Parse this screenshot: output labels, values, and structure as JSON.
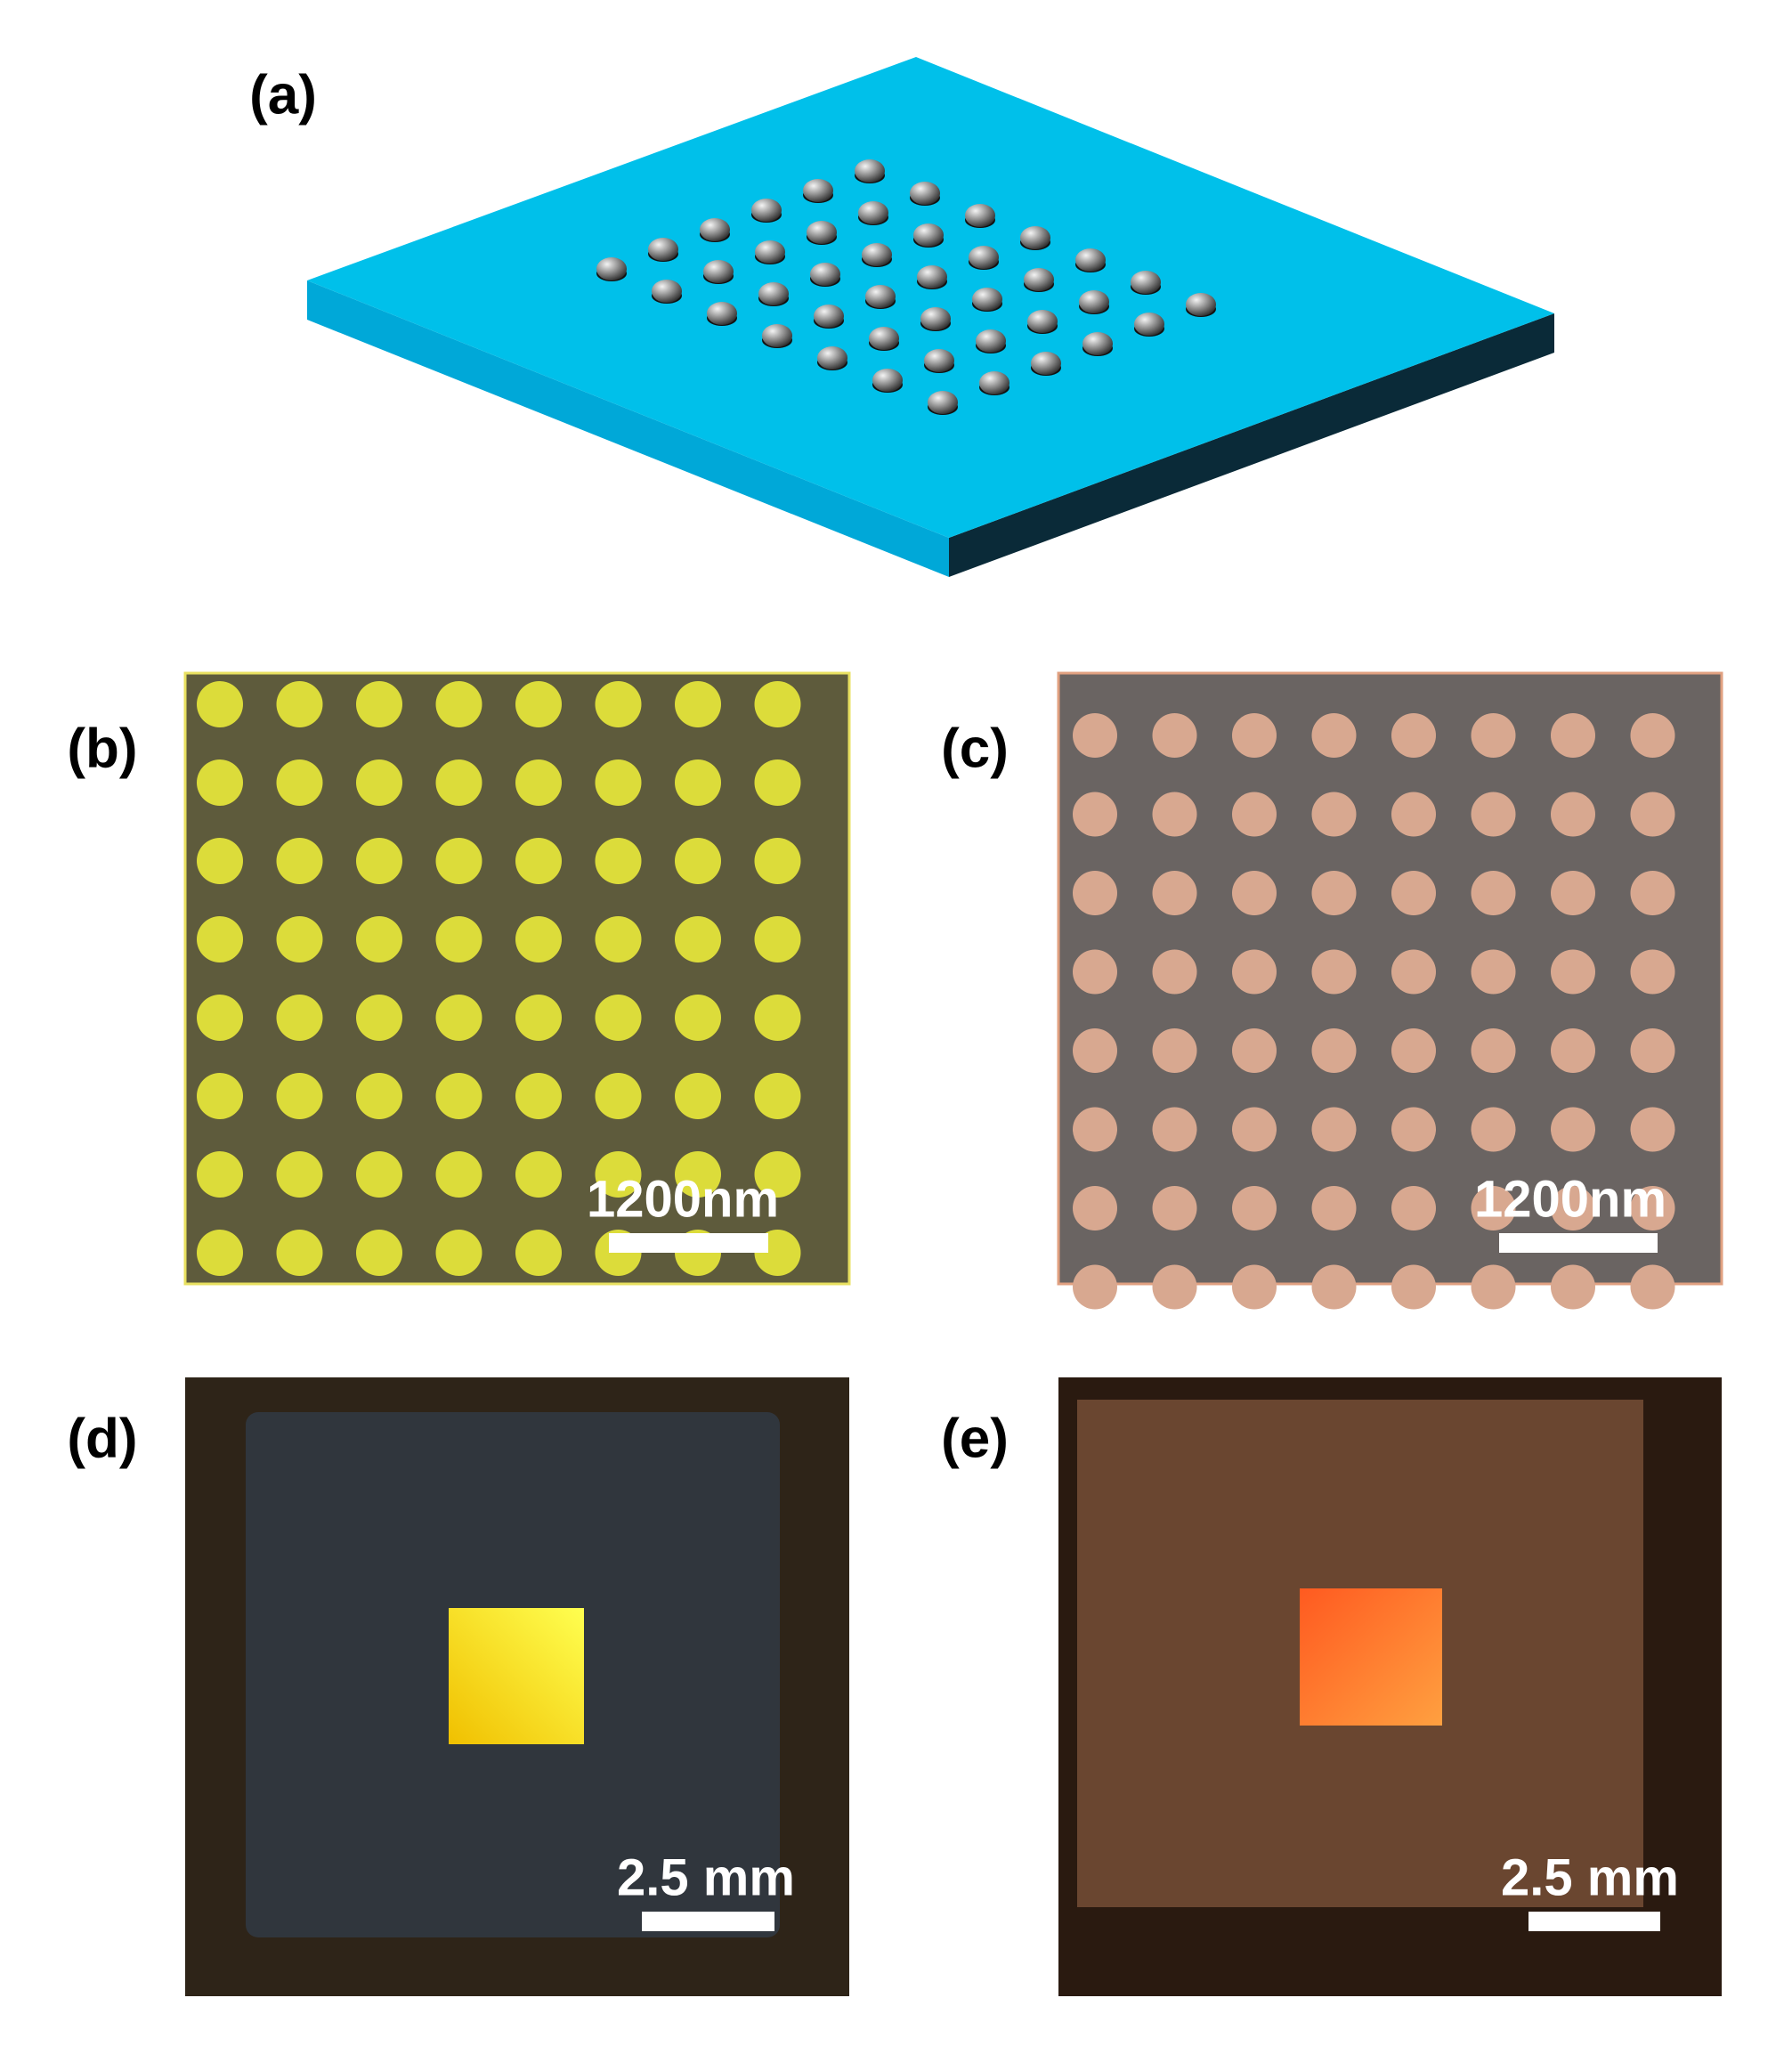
{
  "panels": [
    {
      "label": "(a)"
    },
    {
      "label": "(b)",
      "scale_bar": "1200nm"
    },
    {
      "label": "(c)",
      "scale_bar": "1200nm"
    },
    {
      "label": "(d)",
      "scale_bar": "2.5 mm"
    },
    {
      "label": "(e)",
      "scale_bar": "2.5 mm"
    }
  ]
}
